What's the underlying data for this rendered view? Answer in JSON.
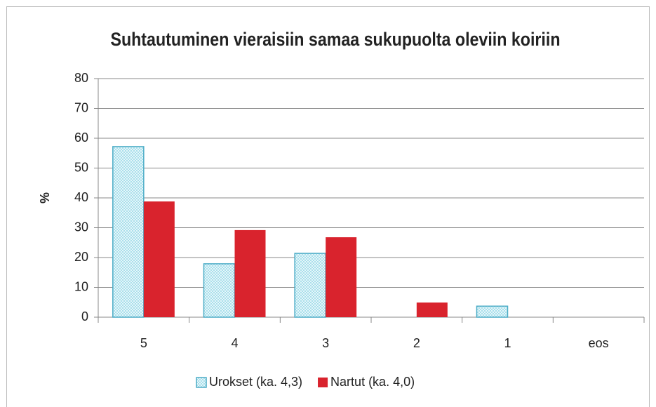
{
  "chart_data": {
    "type": "bar",
    "title": "Suhtautuminen vieraisiin samaa sukupuolta oleviin koiriin",
    "y_label": "%",
    "categories": [
      "5",
      "4",
      "3",
      "2",
      "1",
      "eos"
    ],
    "series": [
      {
        "name": "Urokset (ka. 4,3)",
        "color": "#4bacc6",
        "pattern": "checkered",
        "values": [
          57.2,
          17.9,
          21.4,
          0,
          3.7,
          0
        ]
      },
      {
        "name": "Nartut (ka. 4,0)",
        "color": "#d9232d",
        "values": [
          38.8,
          29.2,
          26.8,
          4.9,
          0,
          0
        ]
      }
    ],
    "ylim": [
      0,
      80
    ],
    "yticks": [
      0,
      10,
      20,
      30,
      40,
      50,
      60,
      70,
      80
    ],
    "grid": true,
    "legend": "bottom"
  }
}
